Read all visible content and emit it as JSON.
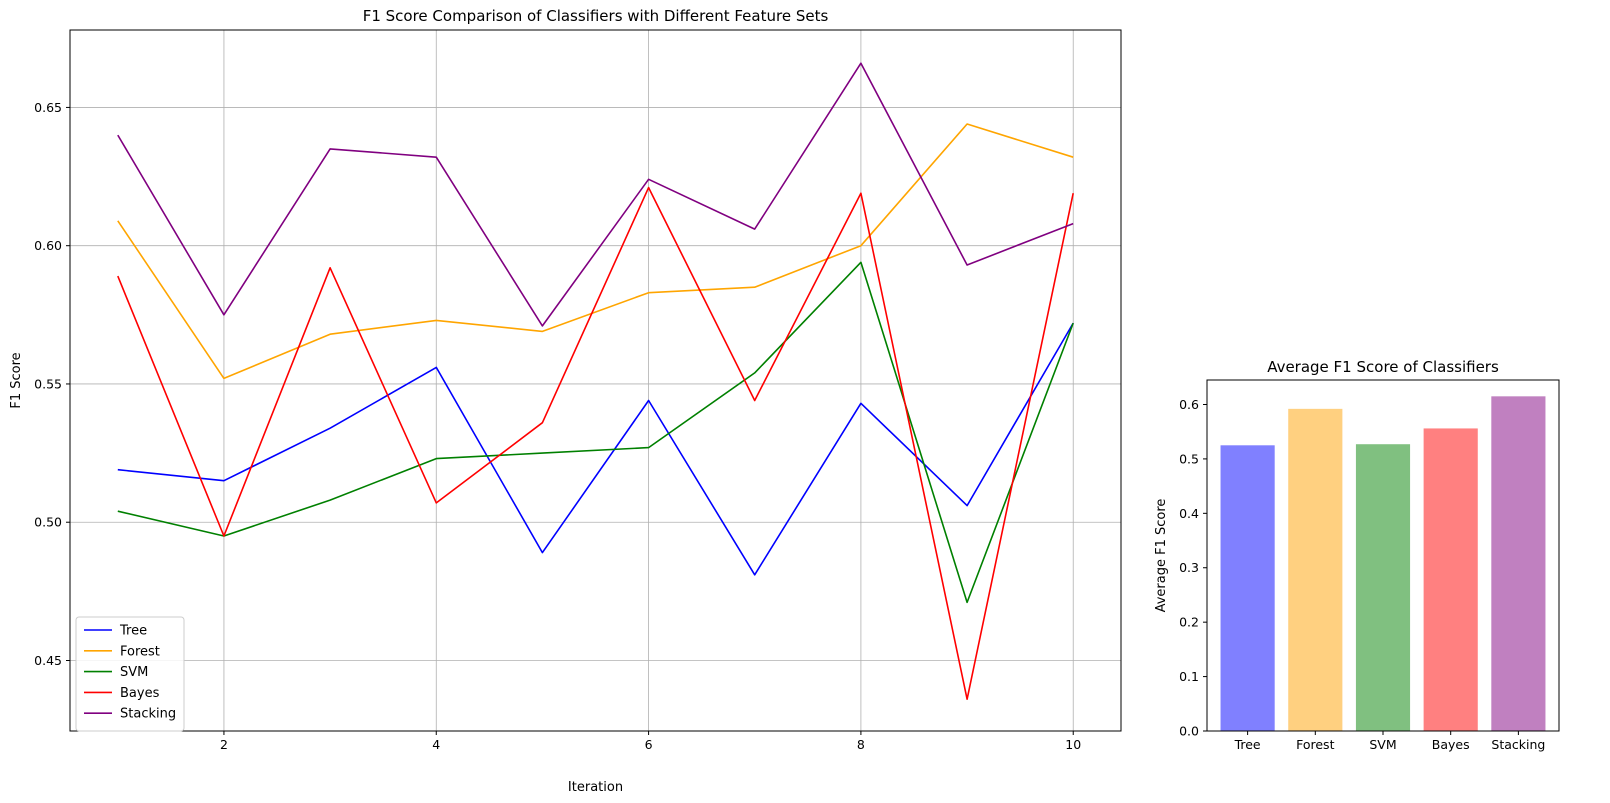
{
  "chart_data": [
    {
      "type": "line",
      "title": "F1 Score Comparison of Classifiers with Different Feature Sets",
      "xlabel": "Iteration",
      "ylabel": "F1 Score",
      "xlim": [
        0.55,
        10.45
      ],
      "ylim": [
        0.4245,
        0.678
      ],
      "xticks": [
        2,
        4,
        6,
        8,
        10
      ],
      "yticks": [
        0.45,
        0.5,
        0.55,
        0.6,
        0.65
      ],
      "ytick_labels": [
        "0.45",
        "0.50",
        "0.55",
        "0.60",
        "0.65"
      ],
      "grid": true,
      "legend_position": "lower-left",
      "x": [
        1,
        2,
        3,
        4,
        5,
        6,
        7,
        8,
        9,
        10
      ],
      "series": [
        {
          "name": "Tree",
          "color": "#0000ff",
          "values": [
            0.519,
            0.515,
            0.534,
            0.556,
            0.489,
            0.544,
            0.481,
            0.543,
            0.506,
            0.572
          ]
        },
        {
          "name": "Forest",
          "color": "#ffa500",
          "values": [
            0.609,
            0.552,
            0.568,
            0.573,
            0.569,
            0.583,
            0.585,
            0.6,
            0.644,
            0.632
          ]
        },
        {
          "name": "SVM",
          "color": "#008000",
          "values": [
            0.504,
            0.495,
            0.508,
            0.523,
            0.525,
            0.527,
            0.554,
            0.594,
            0.471,
            0.572
          ]
        },
        {
          "name": "Bayes",
          "color": "#ff0000",
          "values": [
            0.589,
            0.495,
            0.592,
            0.507,
            0.536,
            0.621,
            0.544,
            0.619,
            0.436,
            0.619
          ]
        },
        {
          "name": "Stacking",
          "color": "#800080",
          "values": [
            0.64,
            0.575,
            0.635,
            0.632,
            0.571,
            0.624,
            0.606,
            0.666,
            0.593,
            0.608
          ]
        }
      ]
    },
    {
      "type": "bar",
      "title": "Average F1 Score of Classifiers",
      "xlabel": "",
      "ylabel": "Average F1 Score",
      "ylim": [
        0,
        0.645
      ],
      "yticks": [
        0.0,
        0.1,
        0.2,
        0.3,
        0.4,
        0.5,
        0.6
      ],
      "ytick_labels": [
        "0.0",
        "0.1",
        "0.2",
        "0.3",
        "0.4",
        "0.5",
        "0.6"
      ],
      "grid": false,
      "categories": [
        "Tree",
        "Forest",
        "SVM",
        "Bayes",
        "Stacking"
      ],
      "values": [
        0.525,
        0.592,
        0.527,
        0.556,
        0.615
      ],
      "colors": [
        "#8080ff",
        "#ffd080",
        "#80c080",
        "#ff8080",
        "#c080c0"
      ]
    }
  ]
}
